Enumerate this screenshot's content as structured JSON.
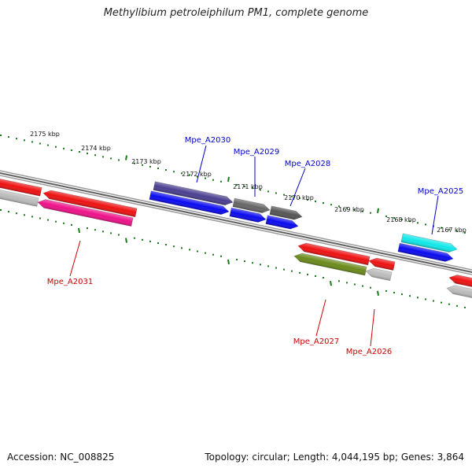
{
  "title": "Methylibium petroleiphilum PM1, complete genome",
  "footer": {
    "accession": "Accession: NC_008825",
    "topology": "Topology: circular; Length: 4,044,195 bp; Genes: 3,864"
  },
  "colors": {
    "backbone": "#8a8a8a",
    "tick": "#1a7a1a",
    "label_forward": "#0000cc",
    "label_reverse": "#cc0000"
  },
  "kbp_labels": [
    "2175 kbp",
    "2174 kbp",
    "2173 kbp",
    "2172 kbp",
    "2171 kbp",
    "2170 kbp",
    "2169 kbp",
    "2168 kbp",
    "2167 kbp"
  ],
  "forward_genes": [
    {
      "color": "#4a3f8f"
    },
    {
      "color": "#0a0af0"
    },
    {
      "color": "#666666"
    },
    {
      "color": "#0a0af0"
    },
    {
      "color": "#555555"
    },
    {
      "color": "#0a0af0"
    },
    {
      "color": "#10e8e8"
    },
    {
      "color": "#0a0af0"
    }
  ],
  "reverse_genes": [
    {
      "color": "#ee1111"
    },
    {
      "color": "#bbbbbb"
    },
    {
      "color": "#ee1111"
    },
    {
      "color": "#ee1188"
    },
    {
      "color": "#ee1111"
    },
    {
      "color": "#6a8a1a"
    },
    {
      "color": "#ee1111"
    },
    {
      "color": "#bbbbbb"
    },
    {
      "color": "#ee1111"
    },
    {
      "color": "#bbbbbb"
    }
  ],
  "gene_labels": [
    {
      "text": "Mpe_A2030",
      "strand": "forward"
    },
    {
      "text": "Mpe_A2029",
      "strand": "forward"
    },
    {
      "text": "Mpe_A2028",
      "strand": "forward"
    },
    {
      "text": "Mpe_A2025",
      "strand": "forward"
    },
    {
      "text": "Mpe_A2031",
      "strand": "reverse"
    },
    {
      "text": "Mpe_A2027",
      "strand": "reverse"
    },
    {
      "text": "Mpe_A2026",
      "strand": "reverse"
    }
  ]
}
